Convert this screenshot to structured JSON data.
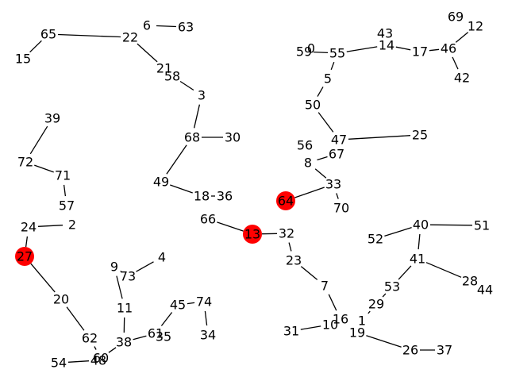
{
  "graph": {
    "colors": {
      "edge": "#000000",
      "highlight": "#ff0000",
      "label": "#000000"
    },
    "nodes": [
      {
        "id": "65"
      },
      {
        "id": "22"
      },
      {
        "id": "15"
      },
      {
        "id": "6"
      },
      {
        "id": "63"
      },
      {
        "id": "21"
      },
      {
        "id": "58"
      },
      {
        "id": "3"
      },
      {
        "id": "68"
      },
      {
        "id": "30"
      },
      {
        "id": "49"
      },
      {
        "id": "18"
      },
      {
        "id": "36"
      },
      {
        "id": "66"
      },
      {
        "id": "13",
        "highlight": true
      },
      {
        "id": "32"
      },
      {
        "id": "23"
      },
      {
        "id": "7"
      },
      {
        "id": "16"
      },
      {
        "id": "10"
      },
      {
        "id": "31"
      },
      {
        "id": "39"
      },
      {
        "id": "72"
      },
      {
        "id": "71"
      },
      {
        "id": "57"
      },
      {
        "id": "24"
      },
      {
        "id": "2"
      },
      {
        "id": "27",
        "highlight": true
      },
      {
        "id": "20"
      },
      {
        "id": "62"
      },
      {
        "id": "60"
      },
      {
        "id": "48"
      },
      {
        "id": "54"
      },
      {
        "id": "9"
      },
      {
        "id": "73"
      },
      {
        "id": "4"
      },
      {
        "id": "11"
      },
      {
        "id": "38"
      },
      {
        "id": "61"
      },
      {
        "id": "35"
      },
      {
        "id": "45"
      },
      {
        "id": "74"
      },
      {
        "id": "34"
      },
      {
        "id": "59"
      },
      {
        "id": "0"
      },
      {
        "id": "55"
      },
      {
        "id": "43"
      },
      {
        "id": "14"
      },
      {
        "id": "17"
      },
      {
        "id": "46"
      },
      {
        "id": "69"
      },
      {
        "id": "12"
      },
      {
        "id": "42"
      },
      {
        "id": "5"
      },
      {
        "id": "50"
      },
      {
        "id": "47"
      },
      {
        "id": "25"
      },
      {
        "id": "56"
      },
      {
        "id": "67"
      },
      {
        "id": "8"
      },
      {
        "id": "33"
      },
      {
        "id": "64",
        "highlight": true
      },
      {
        "id": "70"
      },
      {
        "id": "40"
      },
      {
        "id": "51"
      },
      {
        "id": "52"
      },
      {
        "id": "41"
      },
      {
        "id": "28"
      },
      {
        "id": "44"
      },
      {
        "id": "53"
      },
      {
        "id": "29"
      },
      {
        "id": "1"
      },
      {
        "id": "19"
      },
      {
        "id": "26"
      },
      {
        "id": "37"
      }
    ],
    "edges": [
      [
        "65",
        "22"
      ],
      [
        "65",
        "15"
      ],
      [
        "6",
        "63"
      ],
      [
        "22",
        "21"
      ],
      [
        "21",
        "58"
      ],
      [
        "58",
        "3"
      ],
      [
        "3",
        "68"
      ],
      [
        "68",
        "30"
      ],
      [
        "68",
        "49"
      ],
      [
        "49",
        "18"
      ],
      [
        "18",
        "36"
      ],
      [
        "66",
        "13"
      ],
      [
        "13",
        "32"
      ],
      [
        "32",
        "23"
      ],
      [
        "23",
        "7"
      ],
      [
        "7",
        "16"
      ],
      [
        "10",
        "31"
      ],
      [
        "39",
        "72"
      ],
      [
        "72",
        "71"
      ],
      [
        "71",
        "57"
      ],
      [
        "24",
        "2"
      ],
      [
        "24",
        "27"
      ],
      [
        "27",
        "20"
      ],
      [
        "20",
        "62"
      ],
      [
        "62",
        "60"
      ],
      [
        "48",
        "54"
      ],
      [
        "9",
        "73"
      ],
      [
        "73",
        "4"
      ],
      [
        "9",
        "11"
      ],
      [
        "11",
        "38"
      ],
      [
        "38",
        "60"
      ],
      [
        "38",
        "61"
      ],
      [
        "61",
        "45"
      ],
      [
        "45",
        "74"
      ],
      [
        "74",
        "34"
      ],
      [
        "59",
        "55"
      ],
      [
        "55",
        "14"
      ],
      [
        "14",
        "17"
      ],
      [
        "17",
        "46"
      ],
      [
        "46",
        "12"
      ],
      [
        "46",
        "42"
      ],
      [
        "55",
        "5"
      ],
      [
        "5",
        "50"
      ],
      [
        "50",
        "47"
      ],
      [
        "47",
        "25"
      ],
      [
        "8",
        "67"
      ],
      [
        "8",
        "33"
      ],
      [
        "33",
        "64"
      ],
      [
        "33",
        "70"
      ],
      [
        "40",
        "51"
      ],
      [
        "40",
        "52"
      ],
      [
        "40",
        "41"
      ],
      [
        "41",
        "28"
      ],
      [
        "41",
        "53"
      ],
      [
        "53",
        "29"
      ],
      [
        "29",
        "1"
      ],
      [
        "19",
        "26"
      ],
      [
        "26",
        "37"
      ]
    ]
  }
}
